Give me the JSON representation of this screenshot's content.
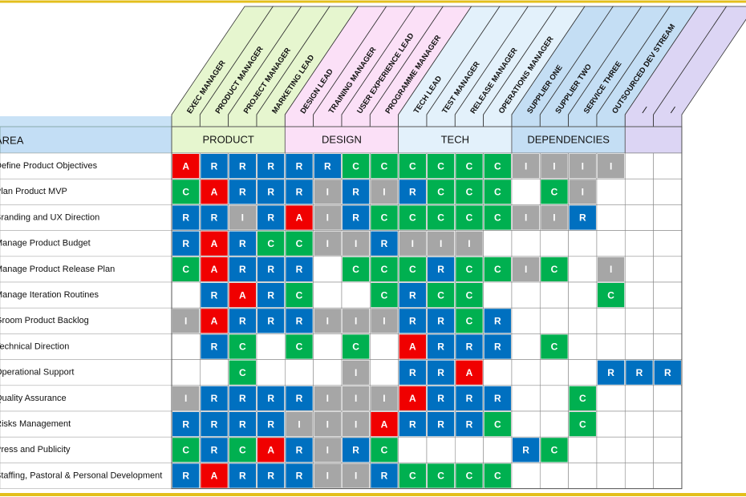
{
  "area_header": "AREA",
  "groups": [
    {
      "name": "PRODUCT",
      "columns": 4,
      "color": "#e6f6cf"
    },
    {
      "name": "DESIGN",
      "columns": 4,
      "color": "#fbe0f7"
    },
    {
      "name": "TECH",
      "columns": 4,
      "color": "#e3f1fb"
    },
    {
      "name": "DEPENDENCIES",
      "columns": 4,
      "color": "#c4def4"
    },
    {
      "name": null,
      "columns": 2,
      "color": "#dcd5f4"
    }
  ],
  "columns": [
    "EXEC MANAGER",
    "PRODUCT MANAGER",
    "PROJECT MANAGER",
    "MARKETING LEAD",
    "DESIGN LEAD",
    "TRAINING MANAGER",
    "USER EXPERIENCE LEAD",
    "PROGRAMME MANAGER",
    "TECH LEAD",
    "TEST MANAGER",
    "RELEASE MANAGER",
    "OPERATIONS MANAGER",
    "SUPPLIER ONE",
    "SUPPLIER TWO",
    "SERVICE THREE",
    "OUTSOURCED DEV STREAM",
    "—",
    "—"
  ],
  "colors": {
    "R": "#0070c0",
    "A": "#f00000",
    "C": "#00b050",
    "I": "#a6a6a6"
  },
  "rows": [
    {
      "area": "Define Product Objectives",
      "cells": [
        "A",
        "R",
        "R",
        "R",
        "R",
        "R",
        "C",
        "C",
        "C",
        "C",
        "C",
        "C",
        "I",
        "I",
        "I",
        "I",
        null,
        null
      ]
    },
    {
      "area": "Plan Product MVP",
      "cells": [
        "C",
        "A",
        "R",
        "R",
        "R",
        "I",
        "R",
        "I",
        "R",
        "C",
        "C",
        "C",
        null,
        "C",
        "I",
        null,
        null,
        null
      ]
    },
    {
      "area": "Branding and UX Direction",
      "cells": [
        "R",
        "R",
        "I",
        "R",
        "A",
        "I",
        "R",
        "C",
        "C",
        "C",
        "C",
        "C",
        "I",
        "I",
        "R",
        null,
        null,
        null
      ]
    },
    {
      "area": "Manage Product Budget",
      "cells": [
        "R",
        "A",
        "R",
        "C",
        "C",
        "I",
        "I",
        "R",
        "I",
        "I",
        "I",
        null,
        null,
        null,
        null,
        null,
        null,
        null
      ]
    },
    {
      "area": "Manage Product Release Plan",
      "cells": [
        "C",
        "A",
        "R",
        "R",
        "R",
        null,
        "C",
        "C",
        "C",
        "R",
        "C",
        "C",
        "I",
        "C",
        null,
        "I",
        null,
        null
      ]
    },
    {
      "area": "Manage Iteration Routines",
      "cells": [
        null,
        "R",
        "A",
        "R",
        "C",
        null,
        null,
        "C",
        "R",
        "C",
        "C",
        null,
        null,
        null,
        null,
        "C",
        null,
        null
      ]
    },
    {
      "area": "Groom Product Backlog",
      "cells": [
        "I",
        "A",
        "R",
        "R",
        "R",
        "I",
        "I",
        "I",
        "R",
        "R",
        "C",
        "R",
        null,
        null,
        null,
        null,
        null,
        null
      ]
    },
    {
      "area": "Technical Direction",
      "cells": [
        null,
        "R",
        "C",
        null,
        "C",
        null,
        "C",
        null,
        "A",
        "R",
        "R",
        "R",
        null,
        "C",
        null,
        null,
        null,
        null
      ]
    },
    {
      "area": "Operational Support",
      "cells": [
        null,
        null,
        "C",
        null,
        null,
        null,
        "I",
        null,
        "R",
        "R",
        "A",
        null,
        null,
        null,
        null,
        "R",
        "R",
        "R"
      ]
    },
    {
      "area": "Quality Assurance",
      "cells": [
        "I",
        "R",
        "R",
        "R",
        "R",
        "I",
        "I",
        "I",
        "A",
        "R",
        "R",
        "R",
        null,
        null,
        "C",
        null,
        null,
        null
      ]
    },
    {
      "area": "Risks Management",
      "cells": [
        "R",
        "R",
        "R",
        "R",
        "I",
        "I",
        "I",
        "A",
        "R",
        "R",
        "R",
        "C",
        null,
        null,
        "C",
        null,
        null,
        null
      ]
    },
    {
      "area": "Press and Publicity",
      "cells": [
        "C",
        "R",
        "C",
        "A",
        "R",
        "I",
        "R",
        "C",
        null,
        null,
        null,
        null,
        "R",
        "C",
        null,
        null,
        null,
        null
      ]
    },
    {
      "area": "Staffing, Pastoral & Personal Development",
      "cells": [
        "R",
        "A",
        "R",
        "R",
        "R",
        "I",
        "I",
        "R",
        "C",
        "C",
        "C",
        "C",
        null,
        null,
        null,
        null,
        null,
        null
      ]
    }
  ]
}
